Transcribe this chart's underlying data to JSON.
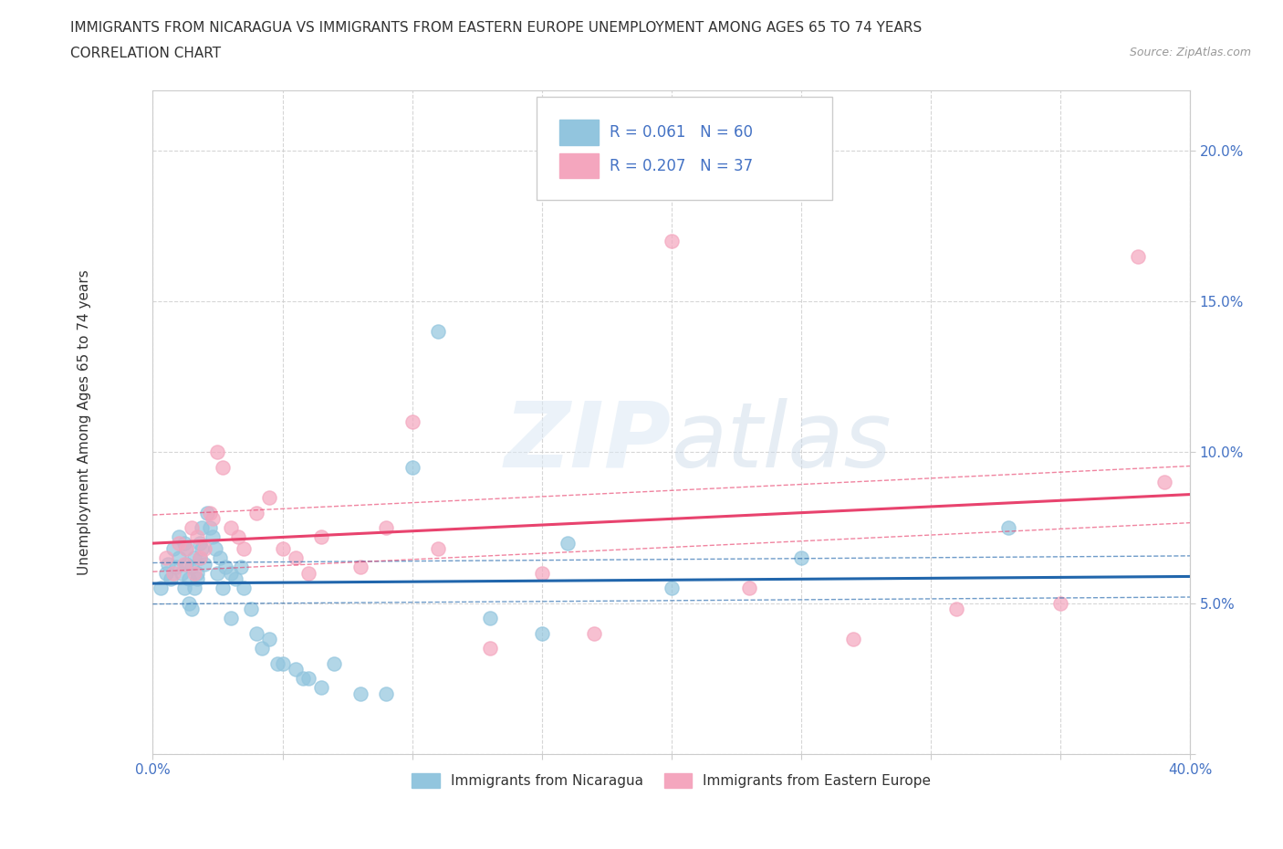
{
  "title_line1": "IMMIGRANTS FROM NICARAGUA VS IMMIGRANTS FROM EASTERN EUROPE UNEMPLOYMENT AMONG AGES 65 TO 74 YEARS",
  "title_line2": "CORRELATION CHART",
  "source": "Source: ZipAtlas.com",
  "ylabel": "Unemployment Among Ages 65 to 74 years",
  "xlim": [
    0.0,
    0.4
  ],
  "ylim": [
    0.0,
    0.22
  ],
  "xticks": [
    0.0,
    0.05,
    0.1,
    0.15,
    0.2,
    0.25,
    0.3,
    0.35,
    0.4
  ],
  "yticks": [
    0.0,
    0.05,
    0.1,
    0.15,
    0.2
  ],
  "nicaragua_color": "#92c5de",
  "eastern_europe_color": "#f4a6be",
  "nicaragua_line_color": "#2166ac",
  "eastern_europe_line_color": "#e8436e",
  "tick_label_color": "#4472c4",
  "r_nicaragua": 0.061,
  "n_nicaragua": 60,
  "r_eastern": 0.207,
  "n_eastern": 37,
  "nicaragua_x": [
    0.003,
    0.005,
    0.006,
    0.007,
    0.008,
    0.009,
    0.01,
    0.01,
    0.011,
    0.012,
    0.012,
    0.013,
    0.013,
    0.014,
    0.014,
    0.015,
    0.015,
    0.016,
    0.016,
    0.017,
    0.017,
    0.018,
    0.018,
    0.019,
    0.019,
    0.02,
    0.021,
    0.022,
    0.023,
    0.024,
    0.025,
    0.026,
    0.027,
    0.028,
    0.03,
    0.03,
    0.032,
    0.034,
    0.035,
    0.038,
    0.04,
    0.042,
    0.045,
    0.048,
    0.05,
    0.055,
    0.058,
    0.06,
    0.065,
    0.07,
    0.08,
    0.09,
    0.1,
    0.11,
    0.13,
    0.15,
    0.16,
    0.2,
    0.25,
    0.33
  ],
  "nicaragua_y": [
    0.055,
    0.06,
    0.063,
    0.058,
    0.068,
    0.062,
    0.072,
    0.065,
    0.06,
    0.055,
    0.07,
    0.063,
    0.068,
    0.05,
    0.058,
    0.062,
    0.048,
    0.055,
    0.065,
    0.06,
    0.058,
    0.065,
    0.07,
    0.075,
    0.068,
    0.063,
    0.08,
    0.075,
    0.072,
    0.068,
    0.06,
    0.065,
    0.055,
    0.062,
    0.06,
    0.045,
    0.058,
    0.062,
    0.055,
    0.048,
    0.04,
    0.035,
    0.038,
    0.03,
    0.03,
    0.028,
    0.025,
    0.025,
    0.022,
    0.03,
    0.02,
    0.02,
    0.095,
    0.14,
    0.045,
    0.04,
    0.07,
    0.055,
    0.065,
    0.075
  ],
  "eastern_x": [
    0.005,
    0.008,
    0.01,
    0.012,
    0.013,
    0.015,
    0.016,
    0.017,
    0.018,
    0.02,
    0.022,
    0.023,
    0.025,
    0.027,
    0.03,
    0.033,
    0.035,
    0.04,
    0.045,
    0.05,
    0.055,
    0.06,
    0.065,
    0.08,
    0.09,
    0.1,
    0.11,
    0.13,
    0.15,
    0.17,
    0.2,
    0.23,
    0.27,
    0.31,
    0.35,
    0.38,
    0.39
  ],
  "eastern_y": [
    0.065,
    0.06,
    0.07,
    0.063,
    0.068,
    0.075,
    0.06,
    0.072,
    0.065,
    0.068,
    0.08,
    0.078,
    0.1,
    0.095,
    0.075,
    0.072,
    0.068,
    0.08,
    0.085,
    0.068,
    0.065,
    0.06,
    0.072,
    0.062,
    0.075,
    0.11,
    0.068,
    0.035,
    0.06,
    0.04,
    0.17,
    0.055,
    0.038,
    0.048,
    0.05,
    0.165,
    0.09
  ],
  "watermark_line1": "ZIP",
  "watermark_line2": "atlas",
  "background_color": "#ffffff",
  "grid_color": "#cccccc"
}
